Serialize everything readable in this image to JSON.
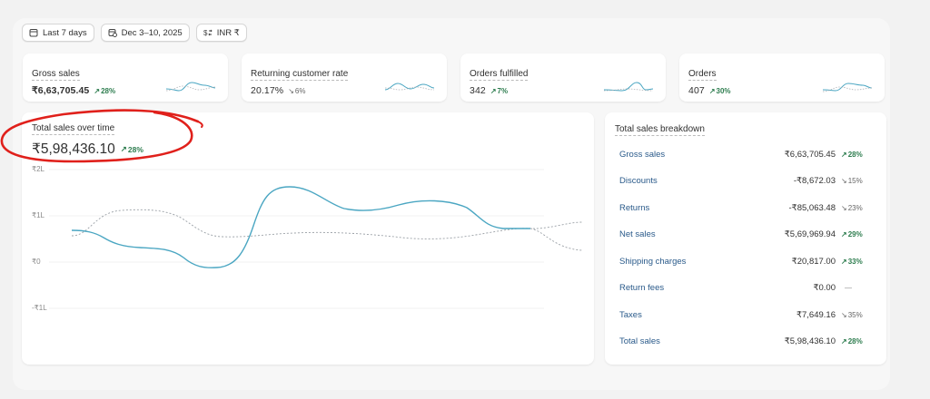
{
  "filters": {
    "date_range_label": "Last 7 days",
    "date_label": "Dec 3–10, 2025",
    "currency_label": "INR ₹"
  },
  "metrics": [
    {
      "label": "Gross sales",
      "value": "₹6,63,705.45",
      "delta": "28%",
      "trend": "up"
    },
    {
      "label": "Returning customer rate",
      "value": "20.17%",
      "delta": "6%",
      "trend": "down"
    },
    {
      "label": "Orders fulfilled",
      "value": "342",
      "delta": "7%",
      "trend": "up"
    },
    {
      "label": "Orders",
      "value": "407",
      "delta": "30%",
      "trend": "up"
    }
  ],
  "sales_chart": {
    "title": "Total sales over time",
    "value": "₹5,98,436.10",
    "delta": "28%",
    "yticks": [
      "₹2L",
      "₹1L",
      "₹0",
      "-₹1L"
    ]
  },
  "breakdown": {
    "title": "Total sales breakdown",
    "rows": [
      {
        "label": "Gross sales",
        "value": "₹6,63,705.45",
        "delta": "28%",
        "trend": "up"
      },
      {
        "label": "Discounts",
        "value": "-₹8,672.03",
        "delta": "15%",
        "trend": "down"
      },
      {
        "label": "Returns",
        "value": "-₹85,063.48",
        "delta": "23%",
        "trend": "down"
      },
      {
        "label": "Net sales",
        "value": "₹5,69,969.94",
        "delta": "29%",
        "trend": "up"
      },
      {
        "label": "Shipping charges",
        "value": "₹20,817.00",
        "delta": "33%",
        "trend": "up"
      },
      {
        "label": "Return fees",
        "value": "₹0.00",
        "delta": "—",
        "trend": "flat"
      },
      {
        "label": "Taxes",
        "value": "₹7,649.16",
        "delta": "35%",
        "trend": "down"
      },
      {
        "label": "Total sales",
        "value": "₹5,98,436.10",
        "delta": "28%",
        "trend": "up"
      }
    ]
  },
  "colors": {
    "accent_line": "#4aa6c2",
    "previous_line": "#9aa0a6",
    "positive": "#2e7d4f",
    "annotation": "#e0201b"
  }
}
